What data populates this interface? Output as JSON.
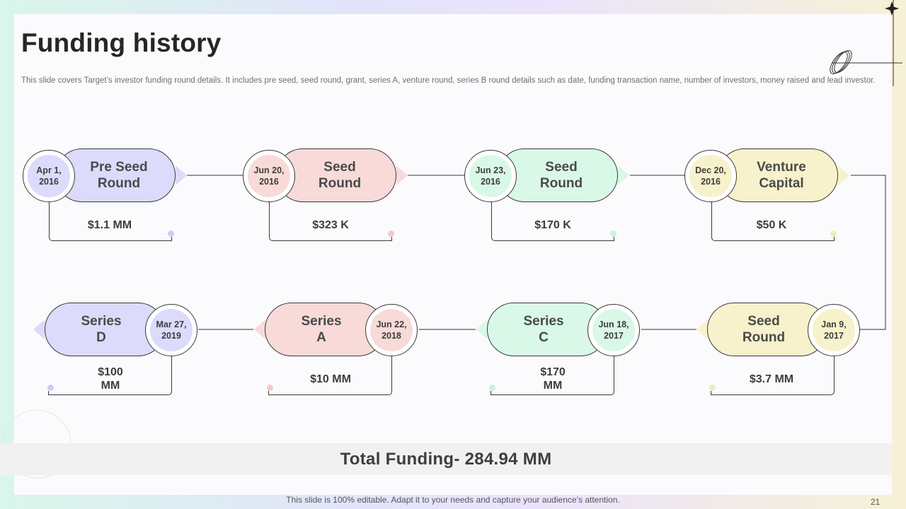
{
  "slide": {
    "title": "Funding history",
    "description": "This slide covers Target’s investor funding round details. It includes pre seed, seed round, grant, series A, venture round, series B round details such as date, funding transaction name, number of investors, money raised and lead investor.",
    "total": "Total Funding- 284.94 MM",
    "footer": "This slide is 100% editable. Adapt it to your needs and capture your audience’s attention.",
    "page_number": "21"
  },
  "colors": {
    "purple": "#dcdbfb",
    "pink": "#f8dbd8",
    "green": "#daf8e7",
    "yellow": "#f7f2cc",
    "purple_dot": "#cfcdf8",
    "pink_dot": "#f5c9c6",
    "green_dot": "#c9f2dd",
    "yellow_dot": "#f2ebba"
  },
  "rounds": [
    {
      "name": "Pre Seed\nRound",
      "date": "Apr 1,\n2016",
      "amount": "$1.1 MM"
    },
    {
      "name": "Seed\nRound",
      "date": "Jun 20,\n2016",
      "amount": "$323 K"
    },
    {
      "name": "Seed\nRound",
      "date": "Jun 23,\n2016",
      "amount": "$170 K"
    },
    {
      "name": "Venture\nCapital",
      "date": "Dec 20,\n2016",
      "amount": "$50 K"
    },
    {
      "name": "Seed\nRound",
      "date": "Jan 9,\n2017",
      "amount": "$3.7 MM"
    },
    {
      "name": "Series\nC",
      "date": "Jun 18,\n2017",
      "amount": "$170\nMM"
    },
    {
      "name": "Series\nA",
      "date": "Jun 22,\n2018",
      "amount": "$10 MM"
    },
    {
      "name": "Series\nD",
      "date": "Mar 27,\n2019",
      "amount": "$100\nMM"
    }
  ]
}
